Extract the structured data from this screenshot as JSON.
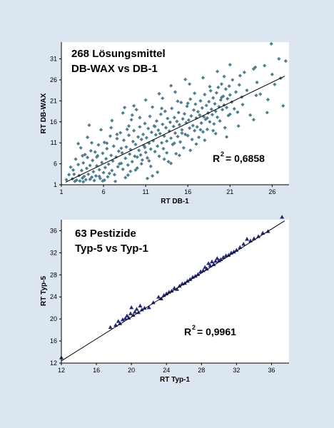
{
  "chart_data": [
    {
      "type": "scatter",
      "title": [
        "268 Lösungsmittel",
        "DB-WAX  vs  DB-1"
      ],
      "xlabel": "RT DB-1",
      "ylabel": "RT DB-WAX",
      "xlim": [
        1,
        28
      ],
      "ylim": [
        1,
        35
      ],
      "xticks": [
        1,
        6,
        11,
        16,
        21,
        26
      ],
      "yticks": [
        1,
        6,
        11,
        16,
        21,
        26,
        31
      ],
      "r2_label": "= 0,6858",
      "fit": {
        "x": [
          1.5,
          27.5
        ],
        "y": [
          1.6,
          26.9
        ]
      },
      "marker": "diamond",
      "color": "#4f7f8f",
      "n_points": 268,
      "points": [
        [
          2.1,
          5.2
        ],
        [
          2.3,
          2.4
        ],
        [
          2.5,
          3.5
        ],
        [
          2.7,
          7.1
        ],
        [
          2.8,
          2.1
        ],
        [
          3.0,
          5.8
        ],
        [
          3.1,
          3.2
        ],
        [
          3.2,
          1.9
        ],
        [
          3.3,
          9.8
        ],
        [
          3.4,
          4.4
        ],
        [
          3.5,
          2.6
        ],
        [
          3.6,
          6.2
        ],
        [
          3.7,
          3.0
        ],
        [
          3.8,
          8.2
        ],
        [
          3.9,
          2.2
        ],
        [
          4.0,
          4.9
        ],
        [
          4.1,
          7.5
        ],
        [
          4.2,
          3.5
        ],
        [
          4.3,
          15.2
        ],
        [
          4.4,
          5.6
        ],
        [
          4.5,
          9.1
        ],
        [
          4.6,
          2.8
        ],
        [
          4.7,
          6.8
        ],
        [
          4.8,
          4.1
        ],
        [
          5.0,
          8.8
        ],
        [
          5.1,
          3.1
        ],
        [
          5.2,
          5.5
        ],
        [
          5.3,
          7.9
        ],
        [
          5.4,
          10.5
        ],
        [
          5.5,
          4.6
        ],
        [
          5.6,
          2.5
        ],
        [
          5.8,
          6.3
        ],
        [
          5.9,
          8.5
        ],
        [
          6.0,
          3.9
        ],
        [
          6.1,
          11.1
        ],
        [
          6.2,
          5.1
        ],
        [
          6.3,
          7.2
        ],
        [
          6.4,
          9.6
        ],
        [
          6.5,
          2.9
        ],
        [
          6.6,
          5.9
        ],
        [
          6.8,
          12.6
        ],
        [
          6.9,
          8.0
        ],
        [
          7.0,
          4.4
        ],
        [
          7.1,
          6.7
        ],
        [
          7.2,
          10.2
        ],
        [
          7.3,
          3.4
        ],
        [
          7.5,
          7.6
        ],
        [
          7.6,
          12.0
        ],
        [
          7.7,
          5.3
        ],
        [
          7.8,
          9.0
        ],
        [
          8.0,
          13.4
        ],
        [
          8.1,
          6.1
        ],
        [
          8.2,
          8.6
        ],
        [
          8.3,
          4.7
        ],
        [
          8.4,
          11.6
        ],
        [
          8.5,
          19.4
        ],
        [
          8.6,
          7.3
        ],
        [
          8.7,
          10.0
        ],
        [
          8.8,
          14.2
        ],
        [
          8.9,
          5.7
        ],
        [
          9.0,
          12.8
        ],
        [
          9.1,
          8.3
        ],
        [
          9.2,
          9.4
        ],
        [
          9.3,
          16.5
        ],
        [
          9.4,
          6.5
        ],
        [
          9.5,
          11.3
        ],
        [
          9.6,
          13.9
        ],
        [
          9.7,
          7.8
        ],
        [
          9.8,
          10.6
        ],
        [
          9.9,
          18.9
        ],
        [
          10.0,
          5.0
        ],
        [
          10.1,
          12.4
        ],
        [
          10.2,
          9.2
        ],
        [
          10.3,
          14.8
        ],
        [
          10.4,
          8.1
        ],
        [
          10.5,
          11.8
        ],
        [
          10.6,
          6.9
        ],
        [
          10.7,
          13.0
        ],
        [
          10.8,
          10.3
        ],
        [
          10.9,
          15.6
        ],
        [
          11.0,
          8.7
        ],
        [
          11.1,
          12.2
        ],
        [
          11.2,
          7.4
        ],
        [
          11.3,
          14.4
        ],
        [
          11.4,
          10.9
        ],
        [
          11.5,
          17.3
        ],
        [
          11.6,
          9.5
        ],
        [
          11.7,
          13.5
        ],
        [
          11.8,
          3.1
        ],
        [
          11.9,
          11.5
        ],
        [
          12.0,
          15.0
        ],
        [
          12.1,
          8.9
        ],
        [
          12.2,
          12.9
        ],
        [
          12.3,
          16.2
        ],
        [
          12.4,
          10.2
        ],
        [
          12.5,
          14.0
        ],
        [
          12.6,
          7.8
        ],
        [
          12.7,
          13.2
        ],
        [
          12.8,
          17.8
        ],
        [
          12.9,
          11.0
        ],
        [
          13.0,
          15.4
        ],
        [
          13.1,
          9.6
        ],
        [
          13.2,
          12.6
        ],
        [
          13.3,
          18.5
        ],
        [
          13.4,
          14.6
        ],
        [
          13.5,
          11.4
        ],
        [
          13.6,
          16.8
        ],
        [
          13.7,
          6.5
        ],
        [
          13.8,
          13.8
        ],
        [
          13.9,
          15.9
        ],
        [
          14.0,
          12.1
        ],
        [
          14.1,
          19.2
        ],
        [
          14.2,
          10.6
        ],
        [
          14.3,
          14.9
        ],
        [
          14.4,
          17.0
        ],
        [
          14.5,
          13.3
        ],
        [
          14.6,
          8.4
        ],
        [
          14.7,
          16.1
        ],
        [
          14.8,
          12.5
        ],
        [
          14.9,
          18.2
        ],
        [
          15.0,
          15.3
        ],
        [
          15.1,
          11.2
        ],
        [
          15.2,
          20.6
        ],
        [
          15.3,
          14.1
        ],
        [
          15.4,
          16.7
        ],
        [
          15.5,
          9.8
        ],
        [
          15.6,
          17.9
        ],
        [
          15.7,
          13.0
        ],
        [
          15.8,
          15.8
        ],
        [
          15.9,
          19.7
        ],
        [
          16.0,
          12.7
        ],
        [
          16.1,
          16.4
        ],
        [
          16.2,
          14.5
        ],
        [
          16.3,
          21.4
        ],
        [
          16.4,
          17.4
        ],
        [
          16.5,
          11.8
        ],
        [
          16.6,
          15.1
        ],
        [
          16.7,
          18.8
        ],
        [
          16.8,
          13.9
        ],
        [
          16.9,
          20.2
        ],
        [
          17.0,
          16.9
        ],
        [
          17.1,
          14.8
        ],
        [
          17.2,
          18.4
        ],
        [
          17.3,
          12.3
        ],
        [
          17.4,
          17.6
        ],
        [
          17.5,
          21.0
        ],
        [
          17.6,
          15.7
        ],
        [
          17.7,
          19.3
        ],
        [
          17.8,
          13.6
        ],
        [
          17.9,
          17.2
        ],
        [
          18.0,
          22.5
        ],
        [
          18.1,
          16.6
        ],
        [
          18.2,
          19.9
        ],
        [
          18.3,
          14.2
        ],
        [
          18.4,
          18.1
        ],
        [
          18.5,
          20.8
        ],
        [
          18.6,
          16.0
        ],
        [
          18.7,
          23.4
        ],
        [
          18.8,
          19.0
        ],
        [
          18.9,
          17.7
        ],
        [
          19.0,
          21.7
        ],
        [
          19.1,
          15.5
        ],
        [
          19.2,
          20.3
        ],
        [
          19.3,
          18.5
        ],
        [
          19.4,
          22.9
        ],
        [
          19.5,
          17.1
        ],
        [
          19.6,
          24.2
        ],
        [
          19.7,
          19.6
        ],
        [
          19.8,
          16.2
        ],
        [
          19.9,
          21.2
        ],
        [
          20.0,
          25.0
        ],
        [
          20.1,
          18.9
        ],
        [
          20.2,
          22.1
        ],
        [
          20.3,
          20.0
        ],
        [
          20.4,
          14.6
        ],
        [
          20.5,
          23.8
        ],
        [
          20.6,
          19.4
        ],
        [
          20.7,
          21.5
        ],
        [
          20.8,
          17.5
        ],
        [
          20.9,
          24.5
        ],
        [
          21.0,
          22.4
        ],
        [
          21.2,
          20.7
        ],
        [
          21.3,
          26.0
        ],
        [
          21.5,
          19.1
        ],
        [
          21.7,
          23.1
        ],
        [
          21.9,
          18.3
        ],
        [
          22.1,
          24.8
        ],
        [
          22.4,
          21.9
        ],
        [
          22.7,
          27.8
        ],
        [
          23.0,
          23.5
        ],
        [
          23.4,
          17.6
        ],
        [
          23.8,
          28.6
        ],
        [
          24.2,
          25.4
        ],
        [
          24.6,
          22.6
        ],
        [
          25.1,
          29.4
        ],
        [
          25.5,
          21.3
        ],
        [
          25.9,
          34.6
        ],
        [
          26.3,
          24.9
        ],
        [
          26.8,
          31.0
        ],
        [
          27.3,
          19.8
        ],
        [
          27.6,
          30.5
        ],
        [
          4.9,
          2.0
        ],
        [
          6.7,
          3.7
        ],
        [
          7.4,
          1.8
        ],
        [
          8.9,
          3.3
        ],
        [
          9.8,
          4.5
        ],
        [
          10.5,
          6.0
        ],
        [
          11.6,
          5.4
        ],
        [
          12.4,
          4.0
        ],
        [
          13.2,
          7.1
        ],
        [
          14.0,
          6.1
        ],
        [
          15.0,
          8.0
        ],
        [
          16.3,
          9.2
        ],
        [
          17.0,
          10.7
        ],
        [
          18.0,
          11.6
        ],
        [
          19.3,
          13.2
        ],
        [
          20.6,
          12.4
        ],
        [
          22.0,
          15.0
        ],
        [
          23.8,
          16.5
        ],
        [
          25.4,
          18.2
        ],
        [
          3.0,
          10.8
        ],
        [
          4.1,
          12.3
        ],
        [
          5.7,
          14.1
        ],
        [
          7.0,
          16.3
        ],
        [
          8.3,
          18.1
        ],
        [
          9.6,
          19.8
        ],
        [
          11.0,
          21.2
        ],
        [
          12.6,
          22.7
        ],
        [
          14.0,
          24.6
        ],
        [
          15.7,
          26.1
        ],
        [
          3.6,
          1.7
        ],
        [
          4.4,
          2.3
        ],
        [
          5.5,
          3.0
        ],
        [
          6.1,
          2.1
        ],
        [
          7.9,
          6.0
        ],
        [
          8.1,
          9.7
        ],
        [
          9.2,
          4.2
        ],
        [
          10.0,
          7.6
        ],
        [
          10.9,
          9.9
        ],
        [
          11.4,
          6.7
        ],
        [
          12.1,
          14.9
        ],
        [
          13.5,
          8.6
        ],
        [
          14.4,
          10.9
        ],
        [
          15.3,
          13.3
        ],
        [
          16.0,
          20.4
        ],
        [
          17.5,
          14.1
        ],
        [
          18.3,
          16.9
        ],
        [
          19.0,
          13.9
        ],
        [
          20.0,
          21.8
        ],
        [
          21.0,
          17.8
        ],
        [
          22.5,
          20.1
        ],
        [
          24.1,
          22.3
        ],
        [
          26.0,
          27.3
        ],
        [
          27.0,
          26.4
        ],
        [
          5.2,
          7.6
        ],
        [
          6.4,
          10.9
        ],
        [
          7.6,
          13.0
        ],
        [
          9.0,
          15.0
        ],
        [
          10.3,
          17.0
        ],
        [
          11.8,
          19.5
        ],
        [
          13.0,
          21.6
        ],
        [
          14.5,
          23.1
        ],
        [
          16.2,
          25.0
        ],
        [
          17.8,
          26.5
        ],
        [
          19.5,
          28.0
        ],
        [
          21.0,
          29.6
        ],
        [
          1.6,
          2.2
        ],
        [
          1.9,
          3.4
        ],
        [
          2.4,
          4.5
        ],
        [
          2.6,
          1.8
        ],
        [
          3.5,
          7.9
        ],
        [
          4.6,
          11.0
        ],
        [
          5.9,
          1.9
        ],
        [
          6.9,
          14.6
        ],
        [
          8.6,
          2.7
        ],
        [
          9.4,
          17.6
        ],
        [
          11.2,
          2.5
        ],
        [
          12.9,
          19.2
        ],
        [
          14.8,
          20.9
        ],
        [
          16.8,
          22.8
        ],
        [
          18.6,
          24.4
        ],
        [
          20.3,
          26.8
        ],
        [
          22.2,
          27.0
        ],
        [
          24.0,
          29.0
        ]
      ]
    },
    {
      "type": "scatter",
      "title": [
        "63 Pestizide",
        "Typ-5  vs  Typ-1"
      ],
      "xlabel": "RT Typ-1",
      "ylabel": "RT Typ-5",
      "xlim": [
        12,
        38
      ],
      "ylim": [
        12,
        38
      ],
      "xticks": [
        12,
        16,
        20,
        24,
        28,
        32,
        36
      ],
      "yticks": [
        12,
        16,
        20,
        24,
        28,
        32,
        36
      ],
      "r2_label": "= 0,9961",
      "fit": {
        "x": [
          12,
          37.5
        ],
        "y": [
          12.4,
          37.8
        ]
      },
      "marker": "triangle",
      "color": "#26297a",
      "points": [
        [
          12.0,
          13.0
        ],
        [
          17.6,
          18.5
        ],
        [
          18.2,
          18.9
        ],
        [
          18.5,
          19.6
        ],
        [
          18.7,
          19.2
        ],
        [
          19.0,
          19.9
        ],
        [
          19.3,
          20.1
        ],
        [
          19.5,
          20.6
        ],
        [
          19.7,
          20.2
        ],
        [
          19.9,
          21.0
        ],
        [
          20.0,
          22.1
        ],
        [
          20.2,
          20.7
        ],
        [
          20.4,
          21.3
        ],
        [
          20.6,
          21.8
        ],
        [
          20.8,
          21.2
        ],
        [
          21.0,
          22.4
        ],
        [
          21.2,
          21.7
        ],
        [
          21.5,
          22.0
        ],
        [
          22.0,
          22.1
        ],
        [
          22.5,
          23.0
        ],
        [
          23.1,
          24.0
        ],
        [
          23.4,
          23.7
        ],
        [
          23.7,
          24.3
        ],
        [
          24.0,
          24.6
        ],
        [
          24.3,
          24.9
        ],
        [
          24.6,
          25.1
        ],
        [
          24.9,
          25.6
        ],
        [
          25.2,
          25.4
        ],
        [
          25.5,
          26.0
        ],
        [
          25.8,
          26.4
        ],
        [
          26.1,
          26.5
        ],
        [
          26.4,
          26.9
        ],
        [
          26.7,
          27.2
        ],
        [
          27.0,
          27.6
        ],
        [
          27.3,
          27.8
        ],
        [
          27.6,
          28.1
        ],
        [
          27.9,
          28.6
        ],
        [
          28.2,
          28.8
        ],
        [
          28.4,
          29.4
        ],
        [
          28.6,
          29.1
        ],
        [
          28.8,
          30.1
        ],
        [
          29.0,
          29.7
        ],
        [
          29.2,
          30.4
        ],
        [
          29.4,
          29.9
        ],
        [
          29.6,
          30.5
        ],
        [
          29.8,
          31.0
        ],
        [
          30.0,
          30.6
        ],
        [
          30.2,
          30.8
        ],
        [
          30.5,
          31.2
        ],
        [
          30.8,
          31.5
        ],
        [
          31.1,
          31.6
        ],
        [
          31.4,
          32.0
        ],
        [
          31.7,
          32.2
        ],
        [
          32.0,
          32.5
        ],
        [
          32.4,
          33.0
        ],
        [
          32.8,
          33.6
        ],
        [
          33.2,
          34.5
        ],
        [
          33.6,
          34.2
        ],
        [
          34.0,
          34.6
        ],
        [
          34.5,
          35.0
        ],
        [
          35.0,
          35.6
        ],
        [
          35.6,
          35.9
        ],
        [
          37.2,
          38.5
        ]
      ]
    }
  ]
}
